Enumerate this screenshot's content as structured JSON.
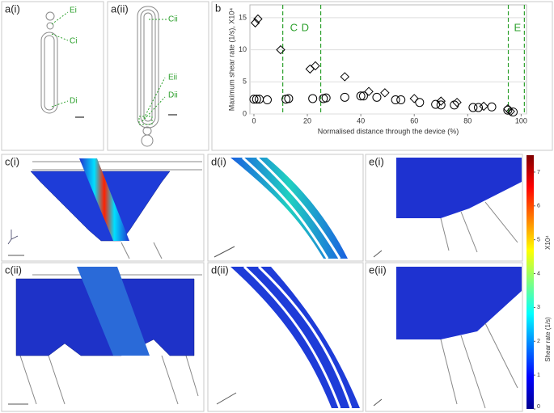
{
  "panels": {
    "a_i": {
      "label": "a(i)",
      "annotations": [
        "Ei",
        "Ci",
        "Di"
      ]
    },
    "a_ii": {
      "label": "a(ii)",
      "annotations": [
        "Cii",
        "Eii",
        "Dii"
      ]
    },
    "b": {
      "label": "b"
    },
    "c_i": {
      "label": "c(i)"
    },
    "c_ii": {
      "label": "c(ii)"
    },
    "d_i": {
      "label": "d(i)"
    },
    "d_ii": {
      "label": "d(ii)"
    },
    "e_i": {
      "label": "e(i)"
    },
    "e_ii": {
      "label": "e(ii)"
    }
  },
  "colorbar": {
    "label": "Shear rate (1/s)",
    "multiplier": "X10⁴",
    "lim": [
      0,
      7.5
    ],
    "ticks": [
      0,
      1,
      2,
      3,
      4,
      5,
      6,
      7
    ]
  },
  "chart_data": {
    "type": "scatter",
    "x_label": "Normalised distance through the device (%)",
    "y_label": "Maximum shear rate (1/s), X10⁴",
    "xlim": [
      -1.5,
      102
    ],
    "ylim": [
      0,
      17
    ],
    "xticks": [
      0,
      20,
      40,
      60,
      80,
      100
    ],
    "yticks": [
      0,
      5,
      10,
      15
    ],
    "grid": true,
    "region_lines": [
      10.8,
      25,
      95.2,
      101.2
    ],
    "region_color": "#2ca02c",
    "region_labels": [
      "C",
      "D",
      "E"
    ],
    "series": [
      {
        "marker": "diamond",
        "color": "#000000",
        "x": [
          0.5,
          1.5,
          10,
          21,
          23,
          34,
          43,
          49,
          60,
          70,
          76,
          86,
          95,
          96
        ],
        "values": [
          14.2,
          14.8,
          10,
          7,
          7.5,
          5.8,
          3.5,
          3.3,
          2.4,
          2,
          1.8,
          1.2,
          0.8,
          0.4
        ]
      },
      {
        "marker": "circle",
        "color": "#000000",
        "x": [
          0,
          1,
          2,
          5,
          12,
          13,
          22,
          26,
          27,
          34,
          40,
          41,
          46,
          53,
          55,
          62,
          68,
          70,
          75,
          82,
          84,
          89,
          95,
          97
        ],
        "values": [
          2.3,
          2.3,
          2.3,
          2.2,
          2.3,
          2.4,
          2.4,
          2.4,
          2.5,
          2.6,
          2.8,
          2.8,
          2.6,
          2.2,
          2.2,
          1.8,
          1.5,
          1.4,
          1.4,
          1,
          1,
          1.1,
          0.6,
          0.3
        ]
      }
    ]
  }
}
